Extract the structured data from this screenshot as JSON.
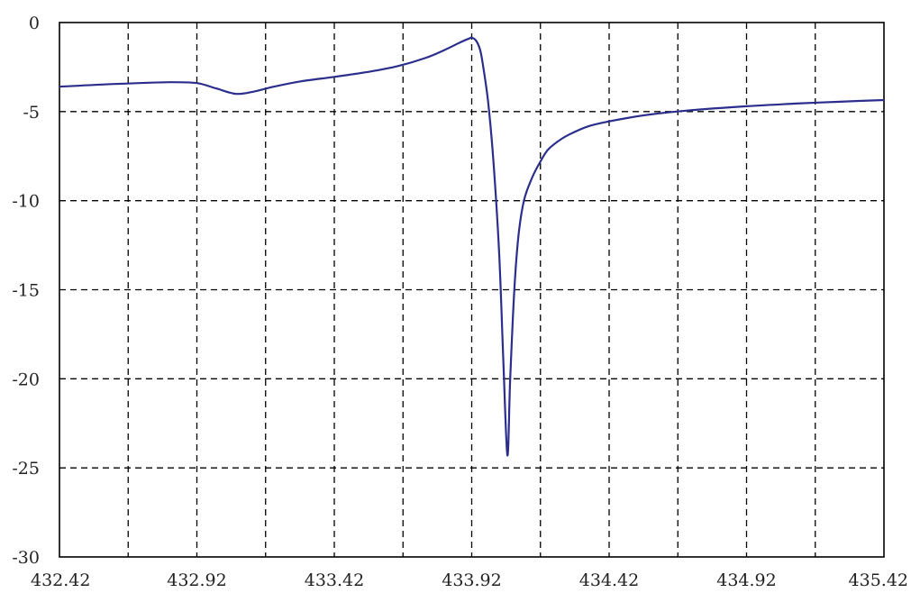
{
  "chart_data": {
    "type": "line",
    "title": "",
    "xlabel": "",
    "ylabel": "",
    "xlim": [
      432.42,
      435.42
    ],
    "ylim": [
      -30,
      0
    ],
    "x_ticks": [
      "432.42",
      "432.92",
      "433.42",
      "433.92",
      "434.42",
      "434.92",
      "435.42"
    ],
    "y_ticks": [
      "0",
      "-5",
      "-10",
      "-15",
      "-20",
      "-25",
      "-30"
    ],
    "grid": true,
    "legend": "none",
    "colors": {
      "series": "#2b2e8c",
      "grid": "#000000"
    },
    "series": [
      {
        "x": [
          432.42,
          432.62,
          432.82,
          432.92,
          432.99,
          433.06,
          433.12,
          433.2,
          433.3,
          433.42,
          433.55,
          433.65,
          433.75,
          433.82,
          433.88,
          433.91,
          433.92,
          433.935,
          433.95,
          433.96,
          433.98,
          434.0,
          434.02,
          434.035,
          434.05,
          434.06,
          434.075,
          434.09,
          434.11,
          434.14,
          434.17,
          434.2,
          434.25,
          434.3,
          434.35,
          434.42,
          434.55,
          434.7,
          434.92,
          435.1,
          435.25,
          435.42
        ],
        "y": [
          -3.6,
          -3.45,
          -3.35,
          -3.4,
          -3.7,
          -4.0,
          -3.9,
          -3.6,
          -3.3,
          -3.05,
          -2.75,
          -2.45,
          -2.0,
          -1.55,
          -1.1,
          -0.9,
          -0.85,
          -1.0,
          -1.5,
          -2.3,
          -4.5,
          -8.0,
          -13.0,
          -19.0,
          -24.3,
          -20.0,
          -15.0,
          -12.0,
          -10.0,
          -8.7,
          -7.8,
          -7.1,
          -6.5,
          -6.1,
          -5.8,
          -5.55,
          -5.2,
          -4.95,
          -4.7,
          -4.55,
          -4.45,
          -4.35
        ]
      }
    ]
  }
}
